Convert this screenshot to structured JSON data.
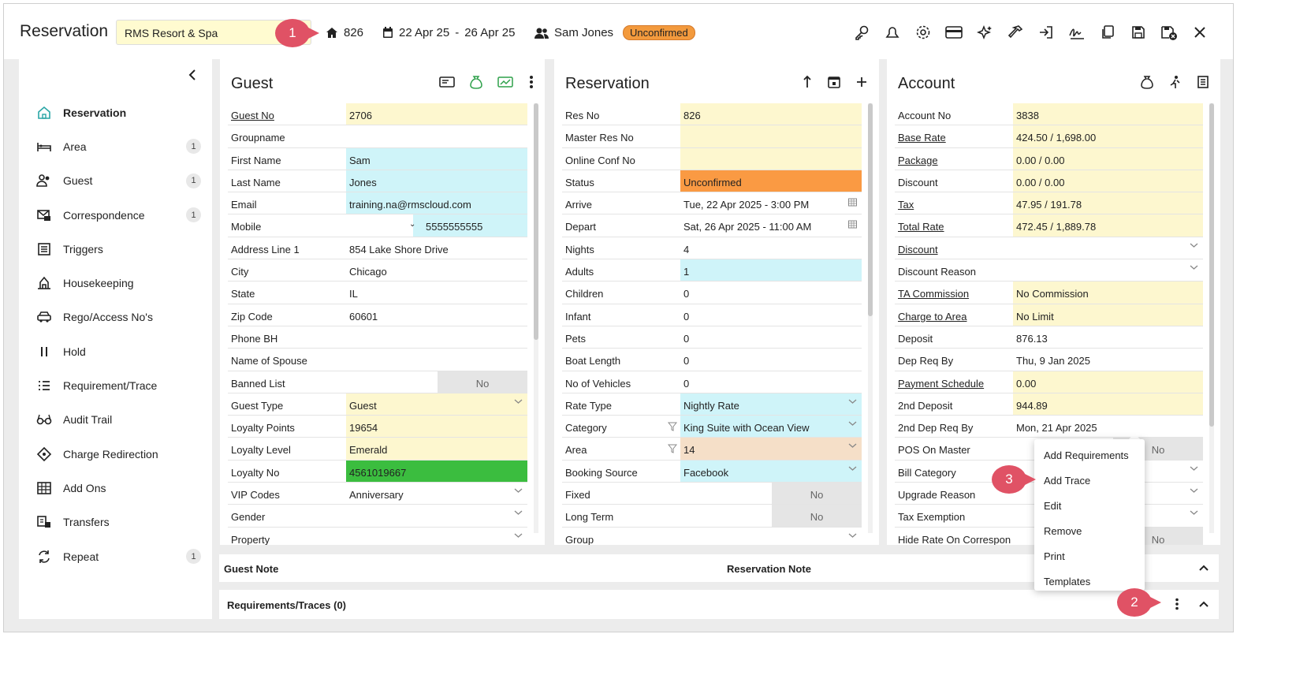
{
  "header": {
    "title": "Reservation",
    "property": "RMS Resort & Spa",
    "res_no": "826",
    "date_from": "22 Apr 25",
    "date_sep": "-",
    "date_to": "26 Apr 25",
    "guest_name": "Sam Jones",
    "status": "Unconfirmed"
  },
  "callouts": {
    "c1": "1",
    "c2": "2",
    "c3": "3"
  },
  "sidebar": {
    "items": [
      {
        "label": "Reservation",
        "icon": "home-icon",
        "count": ""
      },
      {
        "label": "Area",
        "icon": "bed-icon",
        "count": "1"
      },
      {
        "label": "Guest",
        "icon": "users-icon",
        "count": "1"
      },
      {
        "label": "Correspondence",
        "icon": "mail-icon",
        "count": "1"
      },
      {
        "label": "Triggers",
        "icon": "list-icon",
        "count": ""
      },
      {
        "label": "Housekeeping",
        "icon": "housekeeping-icon",
        "count": ""
      },
      {
        "label": "Rego/Access No's",
        "icon": "car-icon",
        "count": ""
      },
      {
        "label": "Hold",
        "icon": "pause-icon",
        "count": ""
      },
      {
        "label": "Requirement/Trace",
        "icon": "checklist-icon",
        "count": ""
      },
      {
        "label": "Audit Trail",
        "icon": "glasses-icon",
        "count": ""
      },
      {
        "label": "Charge Redirection",
        "icon": "diamond-icon",
        "count": ""
      },
      {
        "label": "Add Ons",
        "icon": "grid-icon",
        "count": ""
      },
      {
        "label": "Transfers",
        "icon": "transfer-icon",
        "count": ""
      },
      {
        "label": "Repeat",
        "icon": "repeat-icon",
        "count": "1"
      }
    ]
  },
  "guest": {
    "title": "Guest",
    "rows": [
      {
        "label": "Guest No",
        "value": "2706",
        "u": true,
        "bg": "y"
      },
      {
        "label": "Groupname",
        "value": "",
        "bg": ""
      },
      {
        "label": "First Name",
        "value": "Sam",
        "bg": "c"
      },
      {
        "label": "Last Name",
        "value": "Jones",
        "bg": "c"
      },
      {
        "label": "Email",
        "value": "training.na@rmscloud.com",
        "bg": "c"
      },
      {
        "label": "Mobile",
        "value": "5555555555",
        "bg": "c",
        "mobile": true
      },
      {
        "label": "Address Line 1",
        "value": "854 Lake Shore Drive",
        "bg": ""
      },
      {
        "label": "City",
        "value": "Chicago",
        "bg": ""
      },
      {
        "label": "State",
        "value": "IL",
        "bg": ""
      },
      {
        "label": "Zip Code",
        "value": "60601",
        "bg": ""
      },
      {
        "label": "Phone BH",
        "value": "",
        "bg": ""
      },
      {
        "label": "Name of Spouse",
        "value": "",
        "bg": ""
      },
      {
        "label": "Banned List",
        "value": "",
        "no": "No",
        "bg": ""
      },
      {
        "label": "Guest Type",
        "value": "Guest",
        "bg": "y",
        "dd": true
      },
      {
        "label": "Loyalty Points",
        "value": "19654",
        "bg": "y"
      },
      {
        "label": "Loyalty Level",
        "value": "Emerald",
        "bg": "y"
      },
      {
        "label": "Loyalty No",
        "value": "4561019667",
        "bg": "g"
      },
      {
        "label": "VIP Codes",
        "value": "Anniversary",
        "bg": "",
        "dd": true
      },
      {
        "label": "Gender",
        "value": "",
        "bg": "",
        "dd": true
      },
      {
        "label": "Property",
        "value": "",
        "bg": "",
        "dd": true
      }
    ]
  },
  "reservation": {
    "title": "Reservation",
    "rows": [
      {
        "label": "Res No",
        "value": "826",
        "bg": "y"
      },
      {
        "label": "Master Res No",
        "value": "",
        "bg": "y"
      },
      {
        "label": "Online Conf No",
        "value": "",
        "bg": "y"
      },
      {
        "label": "Status",
        "value": "Unconfirmed",
        "bg": "o"
      },
      {
        "label": "Arrive",
        "value": "Tue, 22 Apr 2025 - 3:00 PM",
        "bg": "",
        "cal": true
      },
      {
        "label": "Depart",
        "value": "Sat, 26 Apr 2025 - 11:00 AM",
        "bg": "",
        "cal": true
      },
      {
        "label": "Nights",
        "value": "4",
        "bg": ""
      },
      {
        "label": "Adults",
        "value": "1",
        "bg": "c"
      },
      {
        "label": "Children",
        "value": "0",
        "bg": ""
      },
      {
        "label": "Infant",
        "value": "0",
        "bg": ""
      },
      {
        "label": "Pets",
        "value": "0",
        "bg": ""
      },
      {
        "label": "Boat Length",
        "value": "0",
        "bg": ""
      },
      {
        "label": "No of Vehicles",
        "value": "0",
        "bg": ""
      },
      {
        "label": "Rate Type",
        "value": "Nightly Rate",
        "bg": "c",
        "dd": true
      },
      {
        "label": "Category",
        "value": "King Suite with Ocean View",
        "bg": "c",
        "dd": true,
        "filter": true
      },
      {
        "label": "Area",
        "value": "14",
        "bg": "p",
        "dd": true,
        "filter": true
      },
      {
        "label": "Booking Source",
        "value": "Facebook",
        "bg": "c",
        "dd": true
      },
      {
        "label": "Fixed",
        "value": "",
        "no": "No",
        "bg": ""
      },
      {
        "label": "Long Term",
        "value": "",
        "no": "No",
        "bg": ""
      },
      {
        "label": "Group",
        "value": "",
        "bg": "",
        "dd": true
      }
    ]
  },
  "account": {
    "title": "Account",
    "rows": [
      {
        "label": "Account No",
        "value": "3838",
        "bg": "y"
      },
      {
        "label": "Base Rate",
        "value": "424.50 / 1,698.00",
        "u": true,
        "bg": "y"
      },
      {
        "label": "Package",
        "value": "0.00 / 0.00",
        "u": true,
        "bg": "y"
      },
      {
        "label": "Discount",
        "value": "0.00 / 0.00",
        "bg": "y"
      },
      {
        "label": "Tax",
        "value": "47.95 / 191.78",
        "u": true,
        "bg": "y"
      },
      {
        "label": "Total Rate",
        "value": "472.45 / 1,889.78",
        "u": true,
        "bg": "y"
      },
      {
        "label": "Discount",
        "value": "",
        "u": true,
        "bg": "",
        "dd": true
      },
      {
        "label": "Discount Reason",
        "value": "",
        "bg": "",
        "dd": true
      },
      {
        "label": "TA Commission",
        "value": "No Commission",
        "u": true,
        "bg": "y"
      },
      {
        "label": "Charge to Area",
        "value": "No Limit",
        "u": true,
        "bg": "y"
      },
      {
        "label": "Deposit",
        "value": "876.13",
        "bg": ""
      },
      {
        "label": "Dep Req By",
        "value": "Thu, 9 Jan 2025",
        "bg": ""
      },
      {
        "label": "Payment Schedule",
        "value": "0.00",
        "u": true,
        "bg": "y"
      },
      {
        "label": "2nd Deposit",
        "value": "944.89",
        "bg": "y"
      },
      {
        "label": "2nd Dep Req By",
        "value": "Mon, 21 Apr 2025",
        "bg": ""
      },
      {
        "label": "POS On Master",
        "value": "",
        "no": "No",
        "bg": ""
      },
      {
        "label": "Bill Category",
        "value": "",
        "bg": "",
        "dd": true
      },
      {
        "label": "Upgrade Reason",
        "value": "",
        "bg": "",
        "dd": true
      },
      {
        "label": "Tax Exemption",
        "value": "",
        "bg": "",
        "dd": true
      },
      {
        "label": "Hide Rate On Correspon",
        "value": "",
        "no": "No",
        "bg": ""
      }
    ]
  },
  "notes": {
    "guest_note": "Guest Note",
    "reservation_note": "Reservation Note"
  },
  "requirements": {
    "title": "Requirements/Traces (0)"
  },
  "context_menu": {
    "items": [
      "Add Requirements",
      "Add Trace",
      "Edit",
      "Remove",
      "Print",
      "Templates"
    ]
  }
}
